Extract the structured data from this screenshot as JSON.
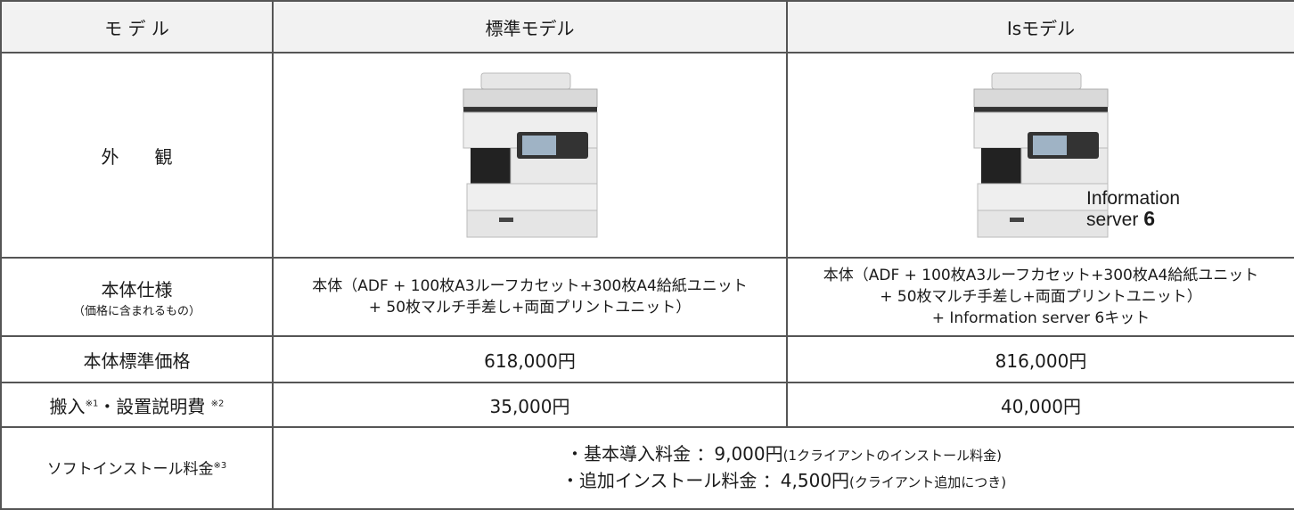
{
  "table": {
    "header": [
      "モ デ ル",
      "標準モデル",
      "Isモデル"
    ],
    "appearance": {
      "label": "外　　観",
      "caption": [
        "Information",
        "server ",
        "6"
      ]
    },
    "spec": {
      "label": "本体仕様",
      "sublabel": "（価格に含まれるもの）",
      "standard": [
        "本体（ADF + 100枚A3ルーフカセット+300枚A4給紙ユニット",
        "+ 50枚マルチ手差し+両面プリントユニット）"
      ],
      "is": [
        "本体（ADF + 100枚A3ルーフカセット+300枚A4給紙ユニット",
        "+ 50枚マルチ手差し+両面プリントユニット）",
        "+ Information server 6キット"
      ]
    },
    "price": {
      "label": "本体標準価格",
      "standard": "618,000円",
      "is": "816,000円"
    },
    "delivery": {
      "label": [
        "搬入",
        "※1",
        "・設置説明費 ",
        "※2"
      ],
      "standard": "35,000円",
      "is": "40,000円"
    },
    "software": {
      "label": [
        "ソフトインストール料金",
        "※3"
      ],
      "lines": [
        [
          "・基本導入料金 ：9,000円",
          "(1クライアントのインストール料金)"
        ],
        [
          "・追加インストール料金 ：4,500円",
          "(クライアント追加につき)"
        ]
      ]
    }
  }
}
